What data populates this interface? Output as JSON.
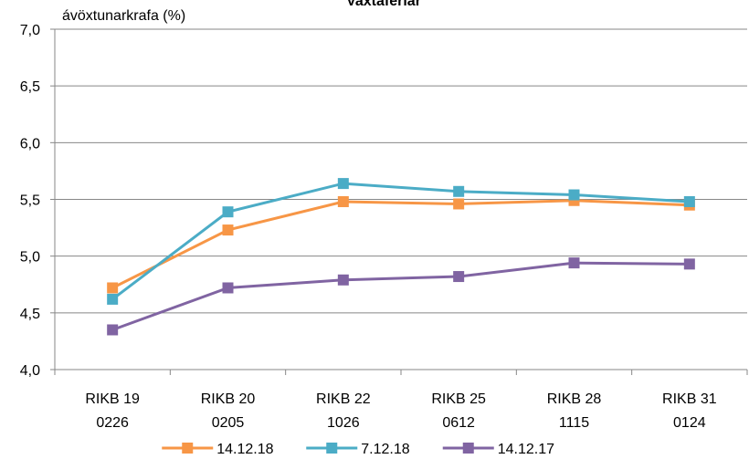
{
  "chart_data": {
    "type": "line",
    "title": "Vaxtaferlar",
    "y_label": "ávöxtunarkrafa (%)",
    "categories": [
      [
        "RIKB 19",
        "0226"
      ],
      [
        "RIKB 20",
        "0205"
      ],
      [
        "RIKB 22",
        "1026"
      ],
      [
        "RIKB 25",
        "0612"
      ],
      [
        "RIKB 28",
        "1115"
      ],
      [
        "RIKB 31",
        "0124"
      ]
    ],
    "series": [
      {
        "name": "14.12.18",
        "color": "#f79646",
        "values": [
          4.72,
          5.23,
          5.48,
          5.46,
          5.49,
          5.45
        ]
      },
      {
        "name": "7.12.18",
        "color": "#4bacc6",
        "values": [
          4.62,
          5.39,
          5.64,
          5.57,
          5.54,
          5.48
        ]
      },
      {
        "name": "14.12.17",
        "color": "#8064a2",
        "values": [
          4.35,
          4.72,
          4.79,
          4.82,
          4.94,
          4.93
        ]
      }
    ],
    "ylim": [
      4,
      7
    ],
    "yticks": [
      {
        "value": 4,
        "label": "4,0"
      },
      {
        "value": 4.5,
        "label": "4,5"
      },
      {
        "value": 5,
        "label": "5,0"
      },
      {
        "value": 5.5,
        "label": "5,5"
      },
      {
        "value": 6,
        "label": "6,0"
      },
      {
        "value": 6.5,
        "label": "6,5"
      },
      {
        "value": 7,
        "label": "7,0"
      }
    ],
    "grid": true,
    "legend": "bottom"
  }
}
